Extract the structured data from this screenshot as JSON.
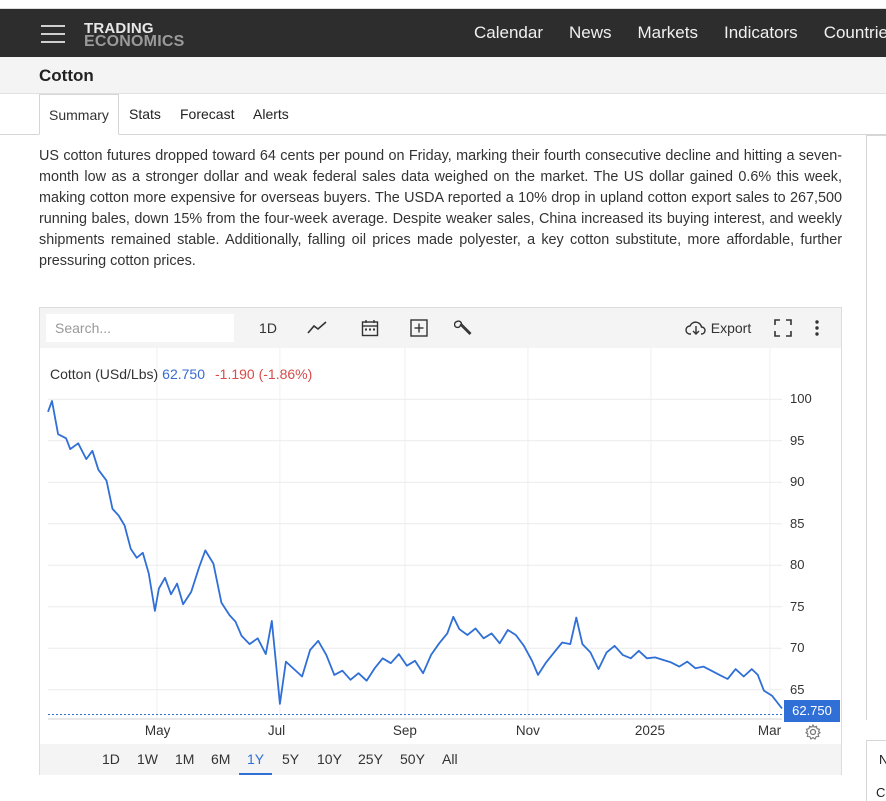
{
  "nav": {
    "logo_line1": "TRADING",
    "logo_line2": "ECONOMICS",
    "links": [
      "Calendar",
      "News",
      "Markets",
      "Indicators",
      "Countries"
    ]
  },
  "page": {
    "title": "Cotton",
    "tabs": [
      "Summary",
      "Stats",
      "Forecast",
      "Alerts"
    ],
    "active_tab": "Summary",
    "summary": "US cotton futures dropped toward 64 cents per pound on Friday, marking their fourth consecutive decline and hitting a seven-month low as a stronger dollar and weak federal sales data weighed on the market. The US dollar gained 0.6% this week, making cotton more expensive for overseas buyers. The USDA reported a 10% drop in upland cotton export sales to 267,500 running bales, down 15% from the four-week average. Despite weaker sales, China increased its buying interest, and weekly shipments remained stable. Additionally, falling oil prices made polyester, a key cotton substitute, more affordable, further pressuring cotton prices."
  },
  "right_rail": {
    "n_label": "N",
    "c_label": "C"
  },
  "chart_toolbar": {
    "search_placeholder": "Search...",
    "interval_label": "1D",
    "export_label": "Export",
    "icons": [
      "line-chart-icon",
      "calendar-icon",
      "add-indicator-icon",
      "wrench-icon",
      "cloud-download-icon",
      "fullscreen-icon",
      "more-icon"
    ]
  },
  "chart_legend": {
    "name": "Cotton (USd/Lbs)",
    "value": "62.750",
    "change": "-1.190 (-1.86%)"
  },
  "ranges": [
    "1D",
    "1W",
    "1M",
    "6M",
    "1Y",
    "5Y",
    "10Y",
    "25Y",
    "50Y",
    "All"
  ],
  "active_range": "1Y",
  "colors": {
    "line": "#2f6fd6",
    "navbar": "#2d2d2d",
    "change_negative": "#d84b4b",
    "accent": "#2f6fd6"
  },
  "chart_data": {
    "type": "line",
    "title": "",
    "xlabel": "",
    "ylabel": "",
    "ylim": [
      61,
      102
    ],
    "yticks": [
      65,
      70,
      75,
      80,
      85,
      90,
      95,
      100
    ],
    "x_tick_labels": [
      "May",
      "Jul",
      "Sep",
      "Nov",
      "2025",
      "Mar"
    ],
    "x_tick_dates": [
      "2024-05-01",
      "2024-07-01",
      "2024-09-01",
      "2024-11-01",
      "2025-01-01",
      "2025-03-01"
    ],
    "x_range": [
      "2024-03-08",
      "2025-03-07"
    ],
    "last_value": "62.750",
    "grid": true,
    "series": [
      {
        "name": "Cotton (USd/Lbs)",
        "points": [
          [
            "2024-03-08",
            98.5
          ],
          [
            "2024-03-10",
            99.8
          ],
          [
            "2024-03-13",
            95.8
          ],
          [
            "2024-03-17",
            95.3
          ],
          [
            "2024-03-19",
            94.0
          ],
          [
            "2024-03-23",
            94.7
          ],
          [
            "2024-03-27",
            92.8
          ],
          [
            "2024-03-30",
            93.8
          ],
          [
            "2024-04-02",
            91.5
          ],
          [
            "2024-04-06",
            90.2
          ],
          [
            "2024-04-09",
            86.8
          ],
          [
            "2024-04-12",
            86.0
          ],
          [
            "2024-04-15",
            84.8
          ],
          [
            "2024-04-18",
            82.0
          ],
          [
            "2024-04-21",
            80.9
          ],
          [
            "2024-04-24",
            81.5
          ],
          [
            "2024-04-27",
            79.0
          ],
          [
            "2024-04-30",
            74.5
          ],
          [
            "2024-05-02",
            77.2
          ],
          [
            "2024-05-05",
            78.5
          ],
          [
            "2024-05-08",
            76.5
          ],
          [
            "2024-05-11",
            77.8
          ],
          [
            "2024-05-14",
            75.3
          ],
          [
            "2024-05-18",
            76.8
          ],
          [
            "2024-05-22",
            79.8
          ],
          [
            "2024-05-25",
            81.8
          ],
          [
            "2024-05-29",
            80.2
          ],
          [
            "2024-06-02",
            75.5
          ],
          [
            "2024-06-06",
            74.0
          ],
          [
            "2024-06-09",
            73.2
          ],
          [
            "2024-06-12",
            71.5
          ],
          [
            "2024-06-16",
            70.5
          ],
          [
            "2024-06-20",
            71.2
          ],
          [
            "2024-06-24",
            69.3
          ],
          [
            "2024-06-27",
            73.3
          ],
          [
            "2024-06-29",
            68.3
          ],
          [
            "2024-07-01",
            63.3
          ],
          [
            "2024-07-04",
            68.4
          ],
          [
            "2024-07-08",
            67.5
          ],
          [
            "2024-07-12",
            66.6
          ],
          [
            "2024-07-16",
            69.8
          ],
          [
            "2024-07-20",
            70.9
          ],
          [
            "2024-07-24",
            69.2
          ],
          [
            "2024-07-28",
            66.8
          ],
          [
            "2024-08-01",
            67.3
          ],
          [
            "2024-08-05",
            66.2
          ],
          [
            "2024-08-09",
            67.0
          ],
          [
            "2024-08-13",
            66.1
          ],
          [
            "2024-08-17",
            67.6
          ],
          [
            "2024-08-21",
            68.8
          ],
          [
            "2024-08-25",
            68.2
          ],
          [
            "2024-08-29",
            69.3
          ],
          [
            "2024-09-02",
            67.9
          ],
          [
            "2024-09-06",
            68.5
          ],
          [
            "2024-09-10",
            67.0
          ],
          [
            "2024-09-14",
            69.2
          ],
          [
            "2024-09-18",
            70.6
          ],
          [
            "2024-09-22",
            71.8
          ],
          [
            "2024-09-25",
            73.8
          ],
          [
            "2024-09-28",
            72.3
          ],
          [
            "2024-10-02",
            71.6
          ],
          [
            "2024-10-06",
            72.4
          ],
          [
            "2024-10-10",
            71.2
          ],
          [
            "2024-10-14",
            71.8
          ],
          [
            "2024-10-18",
            70.6
          ],
          [
            "2024-10-22",
            72.2
          ],
          [
            "2024-10-26",
            71.6
          ],
          [
            "2024-10-30",
            70.3
          ],
          [
            "2024-11-03",
            68.5
          ],
          [
            "2024-11-06",
            66.8
          ],
          [
            "2024-11-10",
            68.3
          ],
          [
            "2024-11-14",
            69.5
          ],
          [
            "2024-11-18",
            70.7
          ],
          [
            "2024-11-22",
            70.5
          ],
          [
            "2024-11-25",
            73.7
          ],
          [
            "2024-11-28",
            70.5
          ],
          [
            "2024-12-02",
            69.5
          ],
          [
            "2024-12-06",
            67.5
          ],
          [
            "2024-12-10",
            69.5
          ],
          [
            "2024-12-14",
            70.3
          ],
          [
            "2024-12-18",
            69.2
          ],
          [
            "2024-12-22",
            68.8
          ],
          [
            "2024-12-26",
            69.7
          ],
          [
            "2024-12-30",
            68.8
          ],
          [
            "2025-01-03",
            68.9
          ],
          [
            "2025-01-07",
            68.6
          ],
          [
            "2025-01-11",
            68.3
          ],
          [
            "2025-01-15",
            67.8
          ],
          [
            "2025-01-19",
            68.4
          ],
          [
            "2025-01-23",
            67.6
          ],
          [
            "2025-01-27",
            67.8
          ],
          [
            "2025-01-31",
            67.3
          ],
          [
            "2025-02-04",
            66.8
          ],
          [
            "2025-02-08",
            66.3
          ],
          [
            "2025-02-12",
            67.5
          ],
          [
            "2025-02-16",
            66.6
          ],
          [
            "2025-02-20",
            67.5
          ],
          [
            "2025-02-23",
            66.8
          ],
          [
            "2025-02-26",
            64.9
          ],
          [
            "2025-03-02",
            64.3
          ],
          [
            "2025-03-07",
            62.75
          ]
        ]
      }
    ]
  }
}
